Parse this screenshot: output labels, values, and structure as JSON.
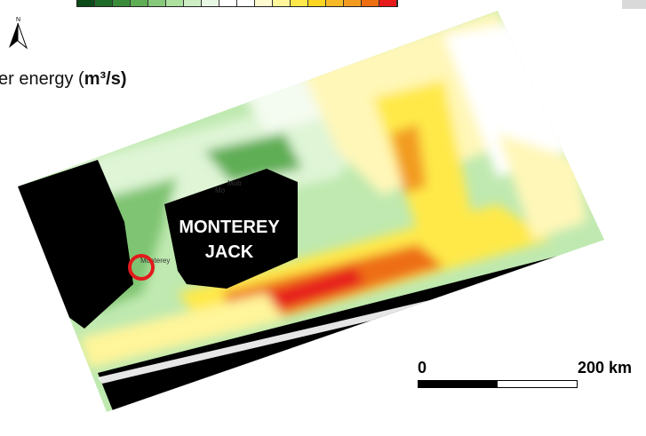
{
  "legend": {
    "title_text": "er energy (",
    "title_unit": "m³/s)",
    "colorbar_colors": [
      "#0c4a1a",
      "#1f6b2a",
      "#3a8c3a",
      "#5fae55",
      "#86c97b",
      "#aee0a0",
      "#cdeec4",
      "#e8f8e4",
      "#ffffff",
      "#ffffff",
      "#fffbd0",
      "#fff59a",
      "#ffe94a",
      "#fbd520",
      "#f7b926",
      "#f29b20",
      "#ee6e12",
      "#e61a1a"
    ]
  },
  "map": {
    "region_label": [
      "MONTEREY",
      "JACK"
    ],
    "city_labels": [
      "Mob",
      "Mo",
      "Monterey"
    ],
    "north_label": "N"
  },
  "scalebar": {
    "label_start": "0",
    "label_end": "200 km"
  },
  "colors": {
    "land": "#000000",
    "marker": "#e31a1c"
  }
}
